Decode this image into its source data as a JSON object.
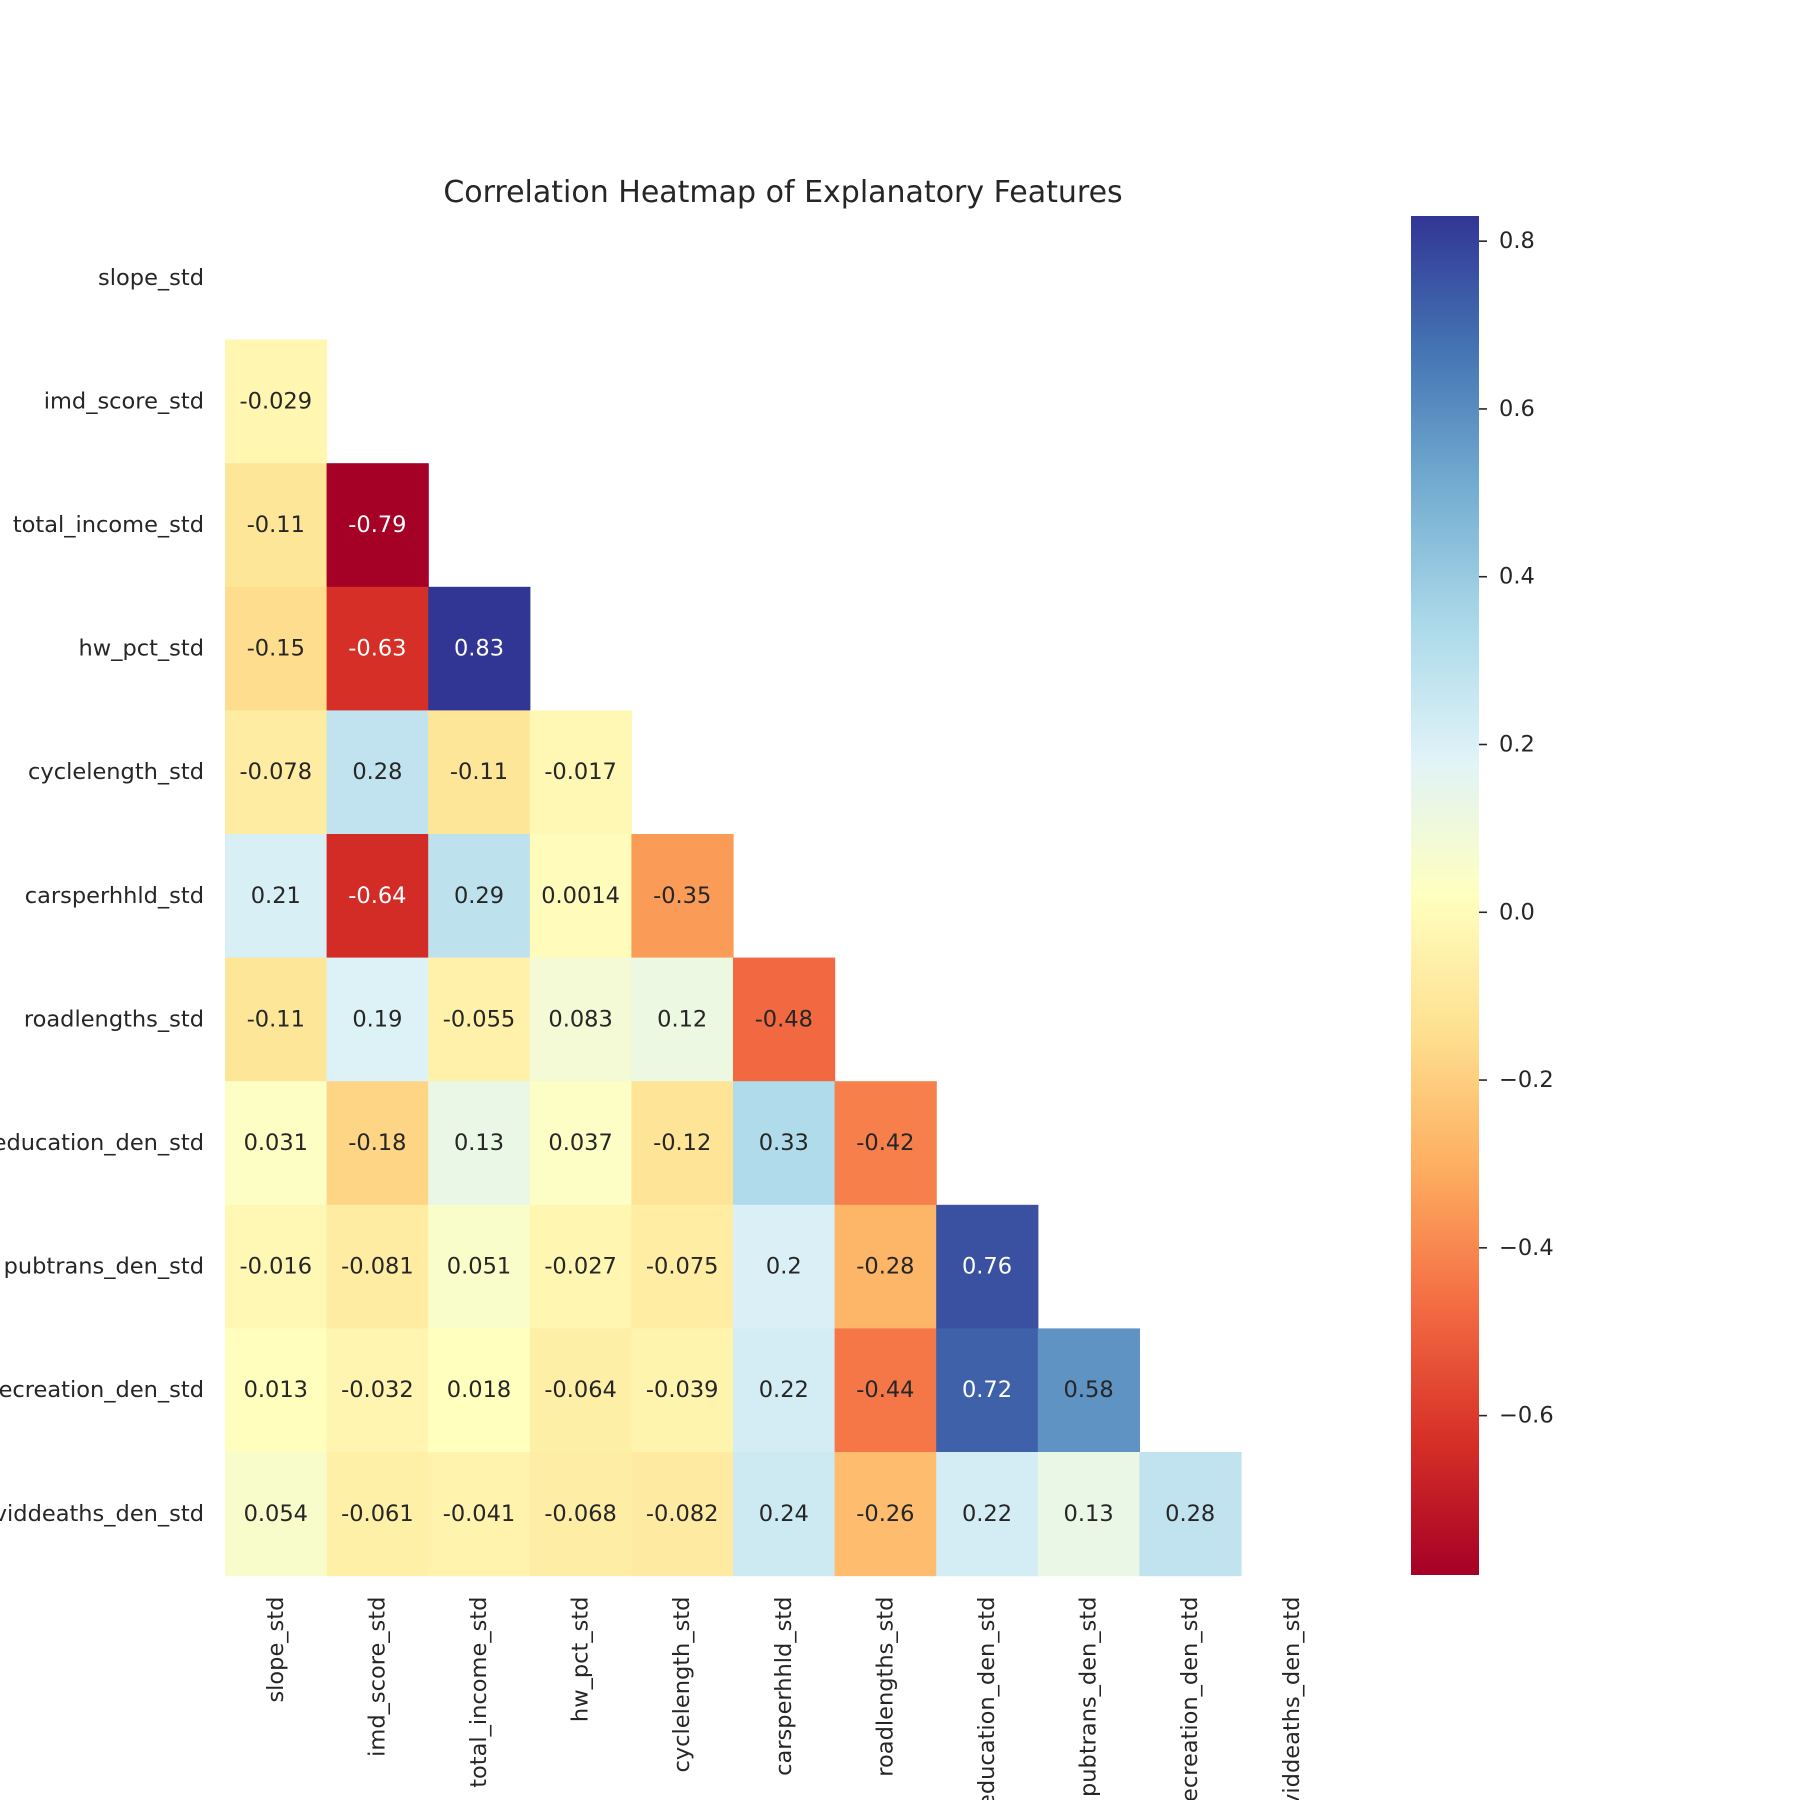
{
  "chart_data": {
    "type": "heatmap",
    "title": "Correlation Heatmap of Explanatory Features",
    "variables": [
      "slope_std",
      "imd_score_std",
      "total_income_std",
      "hw_pct_std",
      "cyclelength_std",
      "carsperhhld_std",
      "roadlengths_std",
      "education_den_std",
      "pubtrans_den_std",
      "recreation_den_std",
      "coviddeaths_den_std"
    ],
    "mask": "upper triangle including diagonal",
    "values": [
      [],
      [
        -0.029
      ],
      [
        -0.11,
        -0.79
      ],
      [
        -0.15,
        -0.63,
        0.83
      ],
      [
        -0.078,
        0.28,
        -0.11,
        -0.017
      ],
      [
        0.21,
        -0.64,
        0.29,
        0.0014,
        -0.35
      ],
      [
        -0.11,
        0.19,
        -0.055,
        0.083,
        0.12,
        -0.48
      ],
      [
        0.031,
        -0.18,
        0.13,
        0.037,
        -0.12,
        0.33,
        -0.42
      ],
      [
        -0.016,
        -0.081,
        0.051,
        -0.027,
        -0.075,
        0.2,
        -0.28,
        0.76
      ],
      [
        0.013,
        -0.032,
        0.018,
        -0.064,
        -0.039,
        0.22,
        -0.44,
        0.72,
        0.58
      ],
      [
        0.054,
        -0.061,
        -0.041,
        -0.068,
        -0.082,
        0.24,
        -0.26,
        0.22,
        0.13,
        0.28
      ]
    ],
    "labels": [
      [],
      [
        "-0.029"
      ],
      [
        "-0.11",
        "-0.79"
      ],
      [
        "-0.15",
        "-0.63",
        "0.83"
      ],
      [
        "-0.078",
        "0.28",
        "-0.11",
        "-0.017"
      ],
      [
        "0.21",
        "-0.64",
        "0.29",
        "0.0014",
        "-0.35"
      ],
      [
        "-0.11",
        "0.19",
        "-0.055",
        "0.083",
        "0.12",
        "-0.48"
      ],
      [
        "0.031",
        "-0.18",
        "0.13",
        "0.037",
        "-0.12",
        "0.33",
        "-0.42"
      ],
      [
        "-0.016",
        "-0.081",
        "0.051",
        "-0.027",
        "-0.075",
        "0.2",
        "-0.28",
        "0.76"
      ],
      [
        "0.013",
        "-0.032",
        "0.018",
        "-0.064",
        "-0.039",
        "0.22",
        "-0.44",
        "0.72",
        "0.58"
      ],
      [
        "0.054",
        "-0.061",
        "-0.041",
        "-0.068",
        "-0.082",
        "0.24",
        "-0.26",
        "0.22",
        "0.13",
        "0.28"
      ]
    ],
    "colormap": "RdYlBu",
    "vmin": -0.79,
    "vmax": 0.83,
    "colorbar": {
      "ticks": [
        0.8,
        0.6,
        0.4,
        0.2,
        0.0,
        -0.2,
        -0.4,
        -0.6
      ],
      "tick_labels": [
        "0.8",
        "0.6",
        "0.4",
        "0.2",
        "0.0",
        "−0.2",
        "−0.4",
        "−0.6"
      ]
    },
    "grid": false,
    "legend": "colorbar right"
  }
}
